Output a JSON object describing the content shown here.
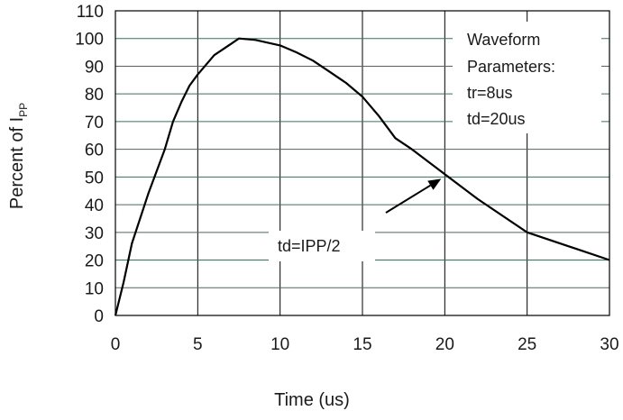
{
  "chart_data": {
    "type": "line",
    "xlabel": "Time (us)",
    "ylabel": {
      "main": "Percent of I",
      "sub": "PP"
    },
    "xlim": [
      0,
      30
    ],
    "ylim": [
      0,
      110
    ],
    "xticks": [
      "0",
      "5",
      "10",
      "15",
      "20",
      "25",
      "30"
    ],
    "yticks": [
      "0",
      "10",
      "20",
      "30",
      "40",
      "50",
      "60",
      "70",
      "80",
      "90",
      "100",
      "110"
    ],
    "grid": "on",
    "series": [
      {
        "color": "#000000",
        "points": [
          {
            "x": 0,
            "y": 0
          },
          {
            "x": 0.5,
            "y": 12
          },
          {
            "x": 1,
            "y": 26
          },
          {
            "x": 2,
            "y": 44
          },
          {
            "x": 3,
            "y": 60
          },
          {
            "x": 3.5,
            "y": 70
          },
          {
            "x": 4,
            "y": 77
          },
          {
            "x": 4.5,
            "y": 83
          },
          {
            "x": 5,
            "y": 87
          },
          {
            "x": 6,
            "y": 94
          },
          {
            "x": 7,
            "y": 98
          },
          {
            "x": 7.5,
            "y": 100
          },
          {
            "x": 8.5,
            "y": 99.5
          },
          {
            "x": 10,
            "y": 97.5
          },
          {
            "x": 11,
            "y": 95
          },
          {
            "x": 12,
            "y": 92
          },
          {
            "x": 13,
            "y": 88
          },
          {
            "x": 14,
            "y": 84
          },
          {
            "x": 15,
            "y": 79
          },
          {
            "x": 16,
            "y": 72
          },
          {
            "x": 17,
            "y": 64
          },
          {
            "x": 18,
            "y": 60
          },
          {
            "x": 20,
            "y": 51
          },
          {
            "x": 22,
            "y": 42
          },
          {
            "x": 25,
            "y": 30
          },
          {
            "x": 30,
            "y": 20
          }
        ]
      }
    ],
    "parameters_box": {
      "lines": [
        "Waveform",
        "Parameters:",
        "tr=8us",
        "td=20us"
      ],
      "location": "top-right"
    },
    "annotation": {
      "text": "td=IPP/2",
      "arrow_to": {
        "x": 20,
        "y": 50
      }
    }
  }
}
